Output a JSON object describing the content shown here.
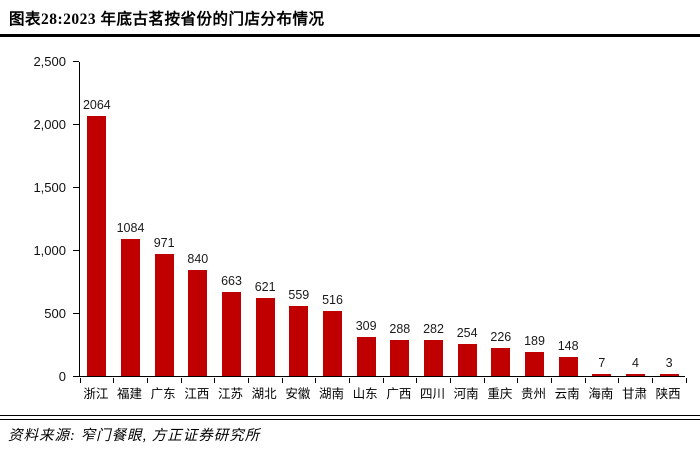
{
  "page": {
    "title": "图表28:2023 年底古茗按省份的门店分布情况",
    "source": "资料来源: 窄门餐眼, 方正证券研究所"
  },
  "chart_data": {
    "type": "bar",
    "title": "2023 年底古茗按省份的门店分布情况",
    "categories": [
      "浙江",
      "福建",
      "广东",
      "江西",
      "江苏",
      "湖北",
      "安徽",
      "湖南",
      "山东",
      "广西",
      "四川",
      "河南",
      "重庆",
      "贵州",
      "云南",
      "海南",
      "甘肃",
      "陕西"
    ],
    "values": [
      2064,
      1084,
      971,
      840,
      663,
      621,
      559,
      516,
      309,
      288,
      282,
      254,
      226,
      189,
      148,
      7,
      4,
      3
    ],
    "xlabel": "",
    "ylabel": "",
    "ylim": [
      0,
      2500
    ],
    "y_ticks": [
      "0",
      "500",
      "1,000",
      "1,500",
      "2,000",
      "2,500"
    ],
    "grid": false,
    "legend": false,
    "data_labels": true,
    "bar_color": "#c00000",
    "axis_color": "#000000",
    "label_color": "#1a1a1a"
  }
}
